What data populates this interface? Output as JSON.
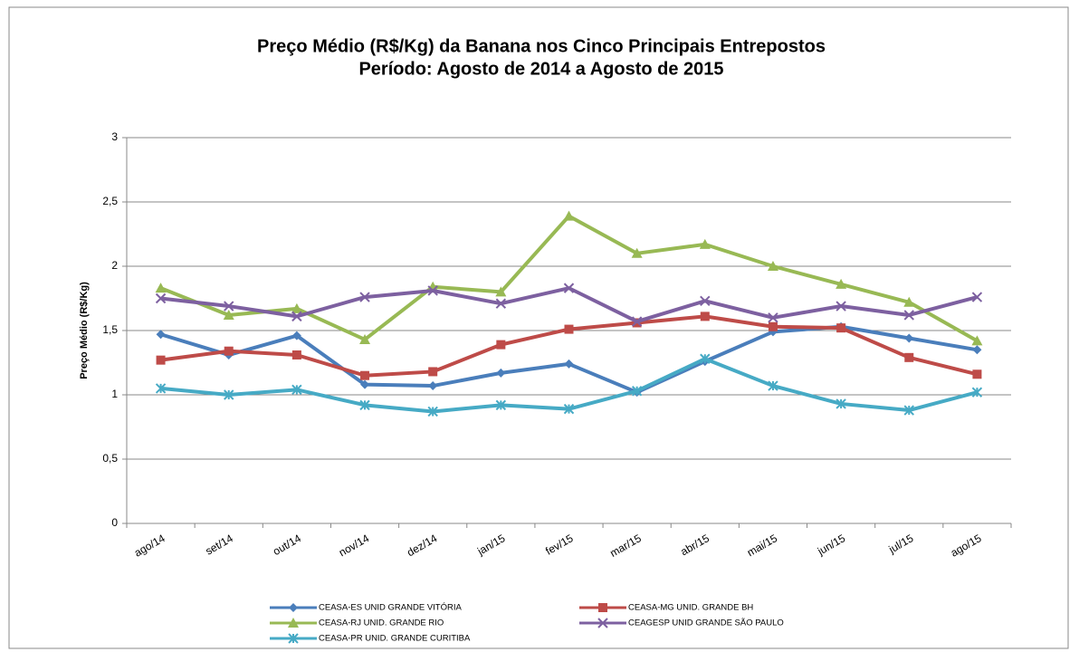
{
  "chart_data": {
    "type": "line",
    "title": "Preço Médio (R$/Kg) da Banana nos Cinco Principais Entrepostos",
    "subtitle": "Período: Agosto de 2014 a Agosto de 2015",
    "y_label": "Preço Médio (R$/Kg)",
    "categories": [
      "ago/14",
      "set/14",
      "out/14",
      "nov/14",
      "dez/14",
      "jan/15",
      "fev/15",
      "mar/15",
      "abr/15",
      "mai/15",
      "jun/15",
      "jul/15",
      "ago/15"
    ],
    "series": [
      {
        "name": "CEASA-ES UNID GRANDE VITÓRIA",
        "color": "#4a7ebb",
        "marker": "diamond",
        "values": [
          1.47,
          1.31,
          1.46,
          1.08,
          1.07,
          1.17,
          1.24,
          1.02,
          1.26,
          1.49,
          1.53,
          1.44,
          1.35
        ]
      },
      {
        "name": "CEASA-MG UNID. GRANDE BH",
        "color": "#be4b48",
        "marker": "square",
        "values": [
          1.27,
          1.34,
          1.31,
          1.15,
          1.18,
          1.39,
          1.51,
          1.56,
          1.61,
          1.53,
          1.52,
          1.29,
          1.16
        ]
      },
      {
        "name": "CEASA-RJ UNID. GRANDE RIO",
        "color": "#98b954",
        "marker": "triangle",
        "values": [
          1.83,
          1.62,
          1.67,
          1.43,
          1.84,
          1.8,
          2.39,
          2.1,
          2.17,
          2.0,
          1.86,
          1.72,
          1.42
        ]
      },
      {
        "name": "CEAGESP UNID GRANDE SÃO PAULO",
        "color": "#7d60a0",
        "marker": "x",
        "values": [
          1.75,
          1.69,
          1.61,
          1.76,
          1.81,
          1.71,
          1.83,
          1.57,
          1.73,
          1.6,
          1.69,
          1.62,
          1.76
        ]
      },
      {
        "name": "CEASA-PR UNID. GRANDE CURITIBA",
        "color": "#46aac5",
        "marker": "star",
        "values": [
          1.05,
          1.0,
          1.04,
          0.92,
          0.87,
          0.92,
          0.89,
          1.03,
          1.28,
          1.07,
          0.93,
          0.88,
          1.02
        ]
      }
    ],
    "ylim": [
      0,
      3
    ],
    "yticks": [
      0,
      {
        "value": 0.5,
        "label": "0,5"
      },
      1,
      {
        "value": 1.5,
        "label": "1,5"
      },
      2,
      {
        "value": 2.5,
        "label": "2,5"
      },
      3
    ],
    "grid": true,
    "legend": "bottom"
  }
}
